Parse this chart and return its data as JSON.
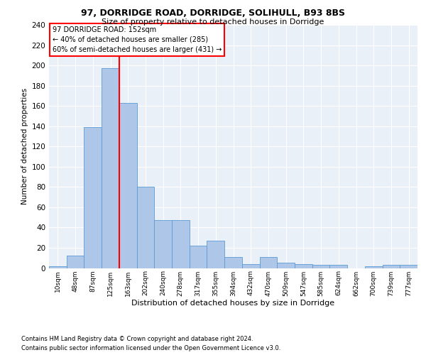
{
  "title1": "97, DORRIDGE ROAD, DORRIDGE, SOLIHULL, B93 8BS",
  "title2": "Size of property relative to detached houses in Dorridge",
  "xlabel": "Distribution of detached houses by size in Dorridge",
  "ylabel": "Number of detached properties",
  "bar_labels": [
    "10sqm",
    "48sqm",
    "87sqm",
    "125sqm",
    "163sqm",
    "202sqm",
    "240sqm",
    "278sqm",
    "317sqm",
    "355sqm",
    "394sqm",
    "432sqm",
    "470sqm",
    "509sqm",
    "547sqm",
    "585sqm",
    "624sqm",
    "662sqm",
    "700sqm",
    "739sqm",
    "777sqm"
  ],
  "bar_values": [
    2,
    12,
    139,
    197,
    163,
    80,
    47,
    47,
    22,
    27,
    11,
    4,
    11,
    5,
    4,
    3,
    3,
    0,
    2,
    3,
    3
  ],
  "bar_color": "#aec6e8",
  "bar_edge_color": "#5b9bd5",
  "vline_color": "red",
  "vline_x": 3.5,
  "annotation_line1": "97 DORRIDGE ROAD: 152sqm",
  "annotation_line2": "← 40% of detached houses are smaller (285)",
  "annotation_line3": "60% of semi-detached houses are larger (431) →",
  "annotation_box_color": "white",
  "annotation_box_edge_color": "red",
  "ylim_max": 240,
  "yticks": [
    0,
    20,
    40,
    60,
    80,
    100,
    120,
    140,
    160,
    180,
    200,
    220,
    240
  ],
  "bg_color": "#eaf0f8",
  "footnote1": "Contains HM Land Registry data © Crown copyright and database right 2024.",
  "footnote2": "Contains public sector information licensed under the Open Government Licence v3.0."
}
